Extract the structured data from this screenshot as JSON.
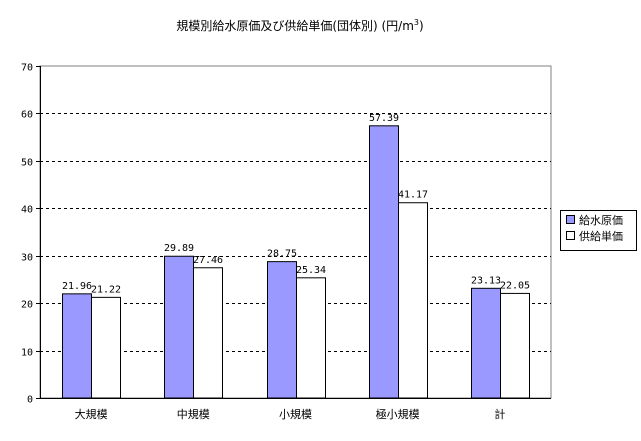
{
  "chart_data": {
    "type": "bar",
    "title": "規模別給水原価及び供給単価(団体別) (円/m",
    "title_superscript": "3",
    "title_suffix": ")",
    "categories": [
      "大規模",
      "中規模",
      "小規模",
      "極小規模",
      "計"
    ],
    "series": [
      {
        "name": "給水原価",
        "values": [
          21.96,
          29.89,
          28.75,
          57.39,
          23.13
        ],
        "labels": [
          "21.96",
          "29.89",
          "28.75",
          "57.39",
          "23.13"
        ],
        "color": "#9999ff"
      },
      {
        "name": "供給単価",
        "values": [
          21.22,
          27.46,
          25.34,
          41.17,
          22.05
        ],
        "labels": [
          "21.22",
          "27.46",
          "25.34",
          "41.17",
          "22.05"
        ],
        "color": "#ffffff"
      }
    ],
    "ylim": [
      0,
      70
    ],
    "yticks": [
      0,
      10,
      20,
      30,
      40,
      50,
      60,
      70
    ],
    "ytick_labels": [
      "0",
      "10",
      "20",
      "30",
      "40",
      "50",
      "60",
      "70"
    ],
    "xlabel": "",
    "ylabel": "",
    "grid": "horizontal dashed",
    "legend_position": "right"
  }
}
